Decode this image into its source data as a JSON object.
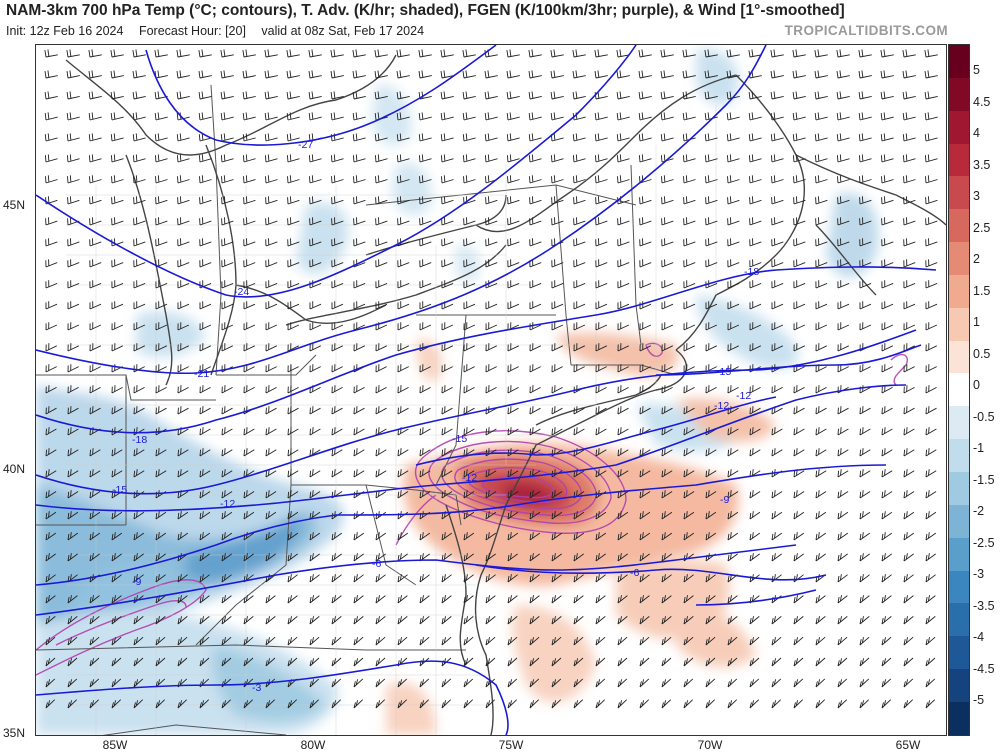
{
  "header": {
    "title": "NAM-3km 700 hPa Temp (°C; contours), T. Adv. (K/hr; shaded), FGEN (K/100km/3hr; purple), & Wind [1°-smoothed]",
    "init": "Init: 12z Feb 16 2024",
    "forecast_hour": "Forecast Hour: [20]",
    "valid": "valid at 08z Sat, Feb 17 2024",
    "brand": "TROPICALTIDBITS.COM"
  },
  "axes": {
    "lon_labels": [
      "85W",
      "80W",
      "75W",
      "70W",
      "65W"
    ],
    "lat_labels": [
      "45N",
      "40N",
      "35N"
    ]
  },
  "contours": {
    "labels": [
      "-27",
      "-24",
      "-21",
      "-18",
      "-18",
      "-15",
      "-15",
      "-15",
      "-12",
      "-12",
      "-12",
      "-12",
      "-9",
      "-9",
      "-6",
      "-6",
      "-3"
    ]
  },
  "colorbar": {
    "labels": [
      "5",
      "4.5",
      "4",
      "3.5",
      "3",
      "2.5",
      "2",
      "1.5",
      "1",
      "0.5",
      "0",
      "-0.5",
      "-1",
      "-1.5",
      "-2",
      "-2.5",
      "-3",
      "-3.5",
      "-4",
      "-4.5",
      "-5"
    ],
    "colors": [
      "#67001f",
      "#800a26",
      "#a01830",
      "#b62a3a",
      "#c84a4f",
      "#d7685e",
      "#e48a75",
      "#f0aa8f",
      "#f7c8b2",
      "#fbe3d6",
      "#ffffff",
      "#dcebf3",
      "#c1dcec",
      "#9fcae1",
      "#7db4d6",
      "#5a9ecc",
      "#3b86be",
      "#2a6eac",
      "#1e5896",
      "#15437d",
      "#0d2f60"
    ]
  }
}
